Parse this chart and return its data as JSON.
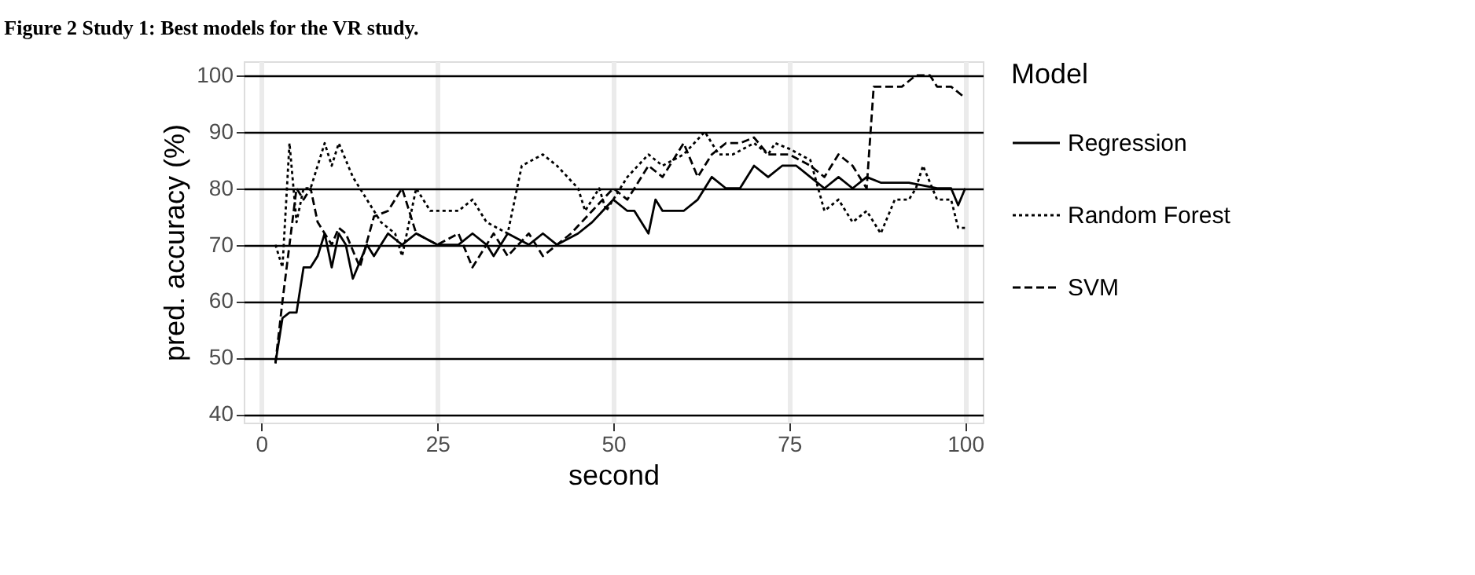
{
  "chart_data": {
    "type": "line",
    "title": "Figure 2    Study 1: Best models for the VR study.",
    "xlabel": "second",
    "ylabel": "pred. accuracy (%)",
    "legend_title": "Model",
    "legend": "right",
    "grid": true,
    "xlim": [
      -2.5,
      102.5
    ],
    "ylim": [
      38.5,
      102.5
    ],
    "xticks": [
      0,
      25,
      50,
      75,
      100
    ],
    "yticks": [
      40,
      50,
      60,
      70,
      80,
      90,
      100
    ],
    "series": [
      {
        "name": "Regression",
        "color": "#000000",
        "line_style": "solid",
        "x": [
          2,
          3,
          4,
          5,
          6,
          7,
          8,
          9,
          10,
          11,
          12,
          13,
          15,
          16,
          17,
          18,
          20,
          22,
          25,
          28,
          30,
          32,
          33,
          35,
          38,
          40,
          42,
          45,
          47,
          50,
          52,
          53,
          55,
          56,
          57,
          60,
          62,
          64,
          66,
          68,
          70,
          72,
          74,
          76,
          78,
          80,
          82,
          84,
          86,
          88,
          92,
          96,
          98,
          99,
          100
        ],
        "values": [
          49,
          57,
          58,
          58,
          66,
          66,
          68,
          72,
          66,
          72,
          70,
          64,
          70,
          68,
          70,
          72,
          70,
          72,
          70,
          70,
          72,
          70,
          68,
          72,
          70,
          72,
          70,
          72,
          74,
          78,
          76,
          76,
          72,
          78,
          76,
          76,
          78,
          82,
          80,
          80,
          84,
          82,
          84,
          84,
          82,
          80,
          82,
          80,
          82,
          81,
          81,
          80,
          80,
          77,
          80
        ]
      },
      {
        "name": "Random Forest",
        "color": "#000000",
        "line_style": "dotted",
        "x": [
          2,
          3,
          4,
          5,
          6,
          7,
          8,
          9,
          10,
          11,
          13,
          15,
          17,
          19,
          20,
          22,
          24,
          25,
          28,
          30,
          32,
          35,
          37,
          40,
          42,
          45,
          46,
          48,
          49,
          52,
          55,
          57,
          60,
          63,
          65,
          67,
          70,
          72,
          73,
          75,
          78,
          80,
          82,
          84,
          86,
          88,
          90,
          92,
          93,
          94,
          96,
          98,
          99,
          100
        ],
        "values": [
          70,
          66,
          88,
          74,
          80,
          80,
          84,
          88,
          84,
          88,
          82,
          78,
          74,
          72,
          68,
          80,
          76,
          76,
          76,
          78,
          74,
          72,
          84,
          86,
          84,
          80,
          76,
          80,
          76,
          82,
          86,
          84,
          86,
          90,
          86,
          86,
          88,
          86,
          88,
          87,
          85,
          76,
          78,
          74,
          76,
          72,
          78,
          78,
          80,
          84,
          78,
          78,
          73,
          73
        ]
      },
      {
        "name": "SVM",
        "color": "#000000",
        "line_style": "dashed",
        "x": [
          2,
          3,
          4,
          5,
          6,
          7,
          8,
          9,
          10,
          11,
          12,
          14,
          16,
          18,
          20,
          22,
          25,
          28,
          30,
          33,
          35,
          38,
          40,
          42,
          44,
          47,
          50,
          52,
          55,
          57,
          60,
          62,
          64,
          66,
          68,
          70,
          72,
          75,
          78,
          80,
          82,
          84,
          86,
          87,
          91,
          93,
          95,
          96,
          98,
          100
        ],
        "values": [
          49,
          60,
          70,
          80,
          78,
          80,
          74,
          72,
          70,
          73,
          72,
          66,
          75,
          76,
          80,
          72,
          70,
          72,
          66,
          72,
          68,
          72,
          68,
          70,
          72,
          76,
          80,
          78,
          84,
          82,
          88,
          82,
          86,
          88,
          88,
          89,
          86,
          86,
          84,
          82,
          86,
          84,
          80,
          98,
          98,
          100,
          100,
          98,
          98,
          96
        ]
      }
    ]
  }
}
